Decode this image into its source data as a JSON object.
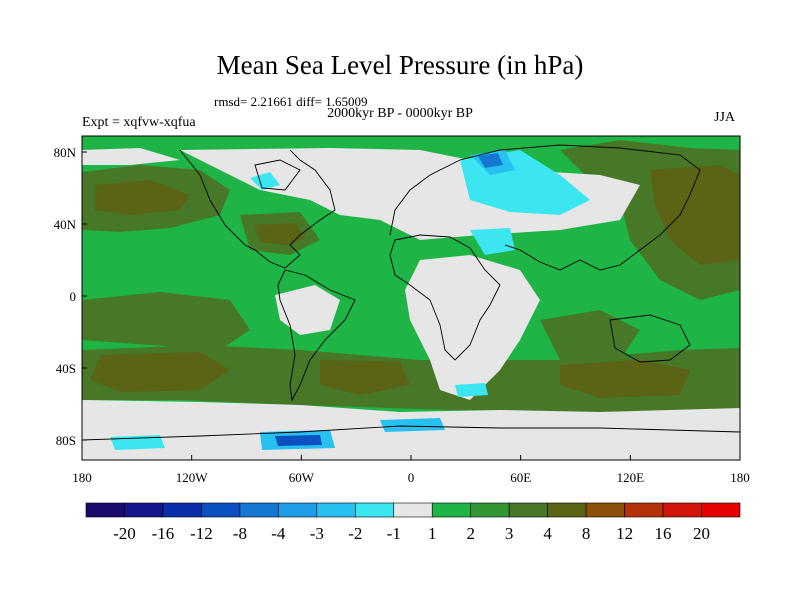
{
  "title": "Mean Sea Level Pressure (in hPa)",
  "stats": "rmsd= 2.21661 diff= 1.65009",
  "subtitle": "2000kyr BP - 0000kyr BP",
  "experiment": "Expt = xqfvw-xqfua",
  "season": "JJA",
  "map": {
    "lat_ticks": [
      "80N",
      "40N",
      "0",
      "40S",
      "80S"
    ],
    "lon_ticks": [
      "180",
      "120W",
      "60W",
      "0",
      "60E",
      "120E",
      "180"
    ]
  },
  "colorbar": {
    "labels": [
      "-20",
      "-16",
      "-12",
      "-8",
      "-4",
      "-3",
      "-2",
      "-1",
      "1",
      "2",
      "3",
      "4",
      "8",
      "12",
      "16",
      "20"
    ],
    "colors": [
      "#1a0a6e",
      "#14148c",
      "#0a2eaa",
      "#0a50c0",
      "#1478d2",
      "#1e9ee6",
      "#28c0f0",
      "#3ce6f0",
      "#e6e6e6",
      "#1eb446",
      "#329632",
      "#467828",
      "#5a6414",
      "#8c500a",
      "#b4320a",
      "#d2140a",
      "#e60000"
    ]
  },
  "palette": {
    "neutral": "#e6e6e6",
    "green_light": "#1eb446",
    "green_mid": "#329632",
    "olive": "#467828",
    "brown": "#5a6414",
    "blue": "#1478d2",
    "cyan": "#3ce6f0",
    "cyan_mid": "#28c0f0",
    "dark_blue": "#0a50c0"
  }
}
